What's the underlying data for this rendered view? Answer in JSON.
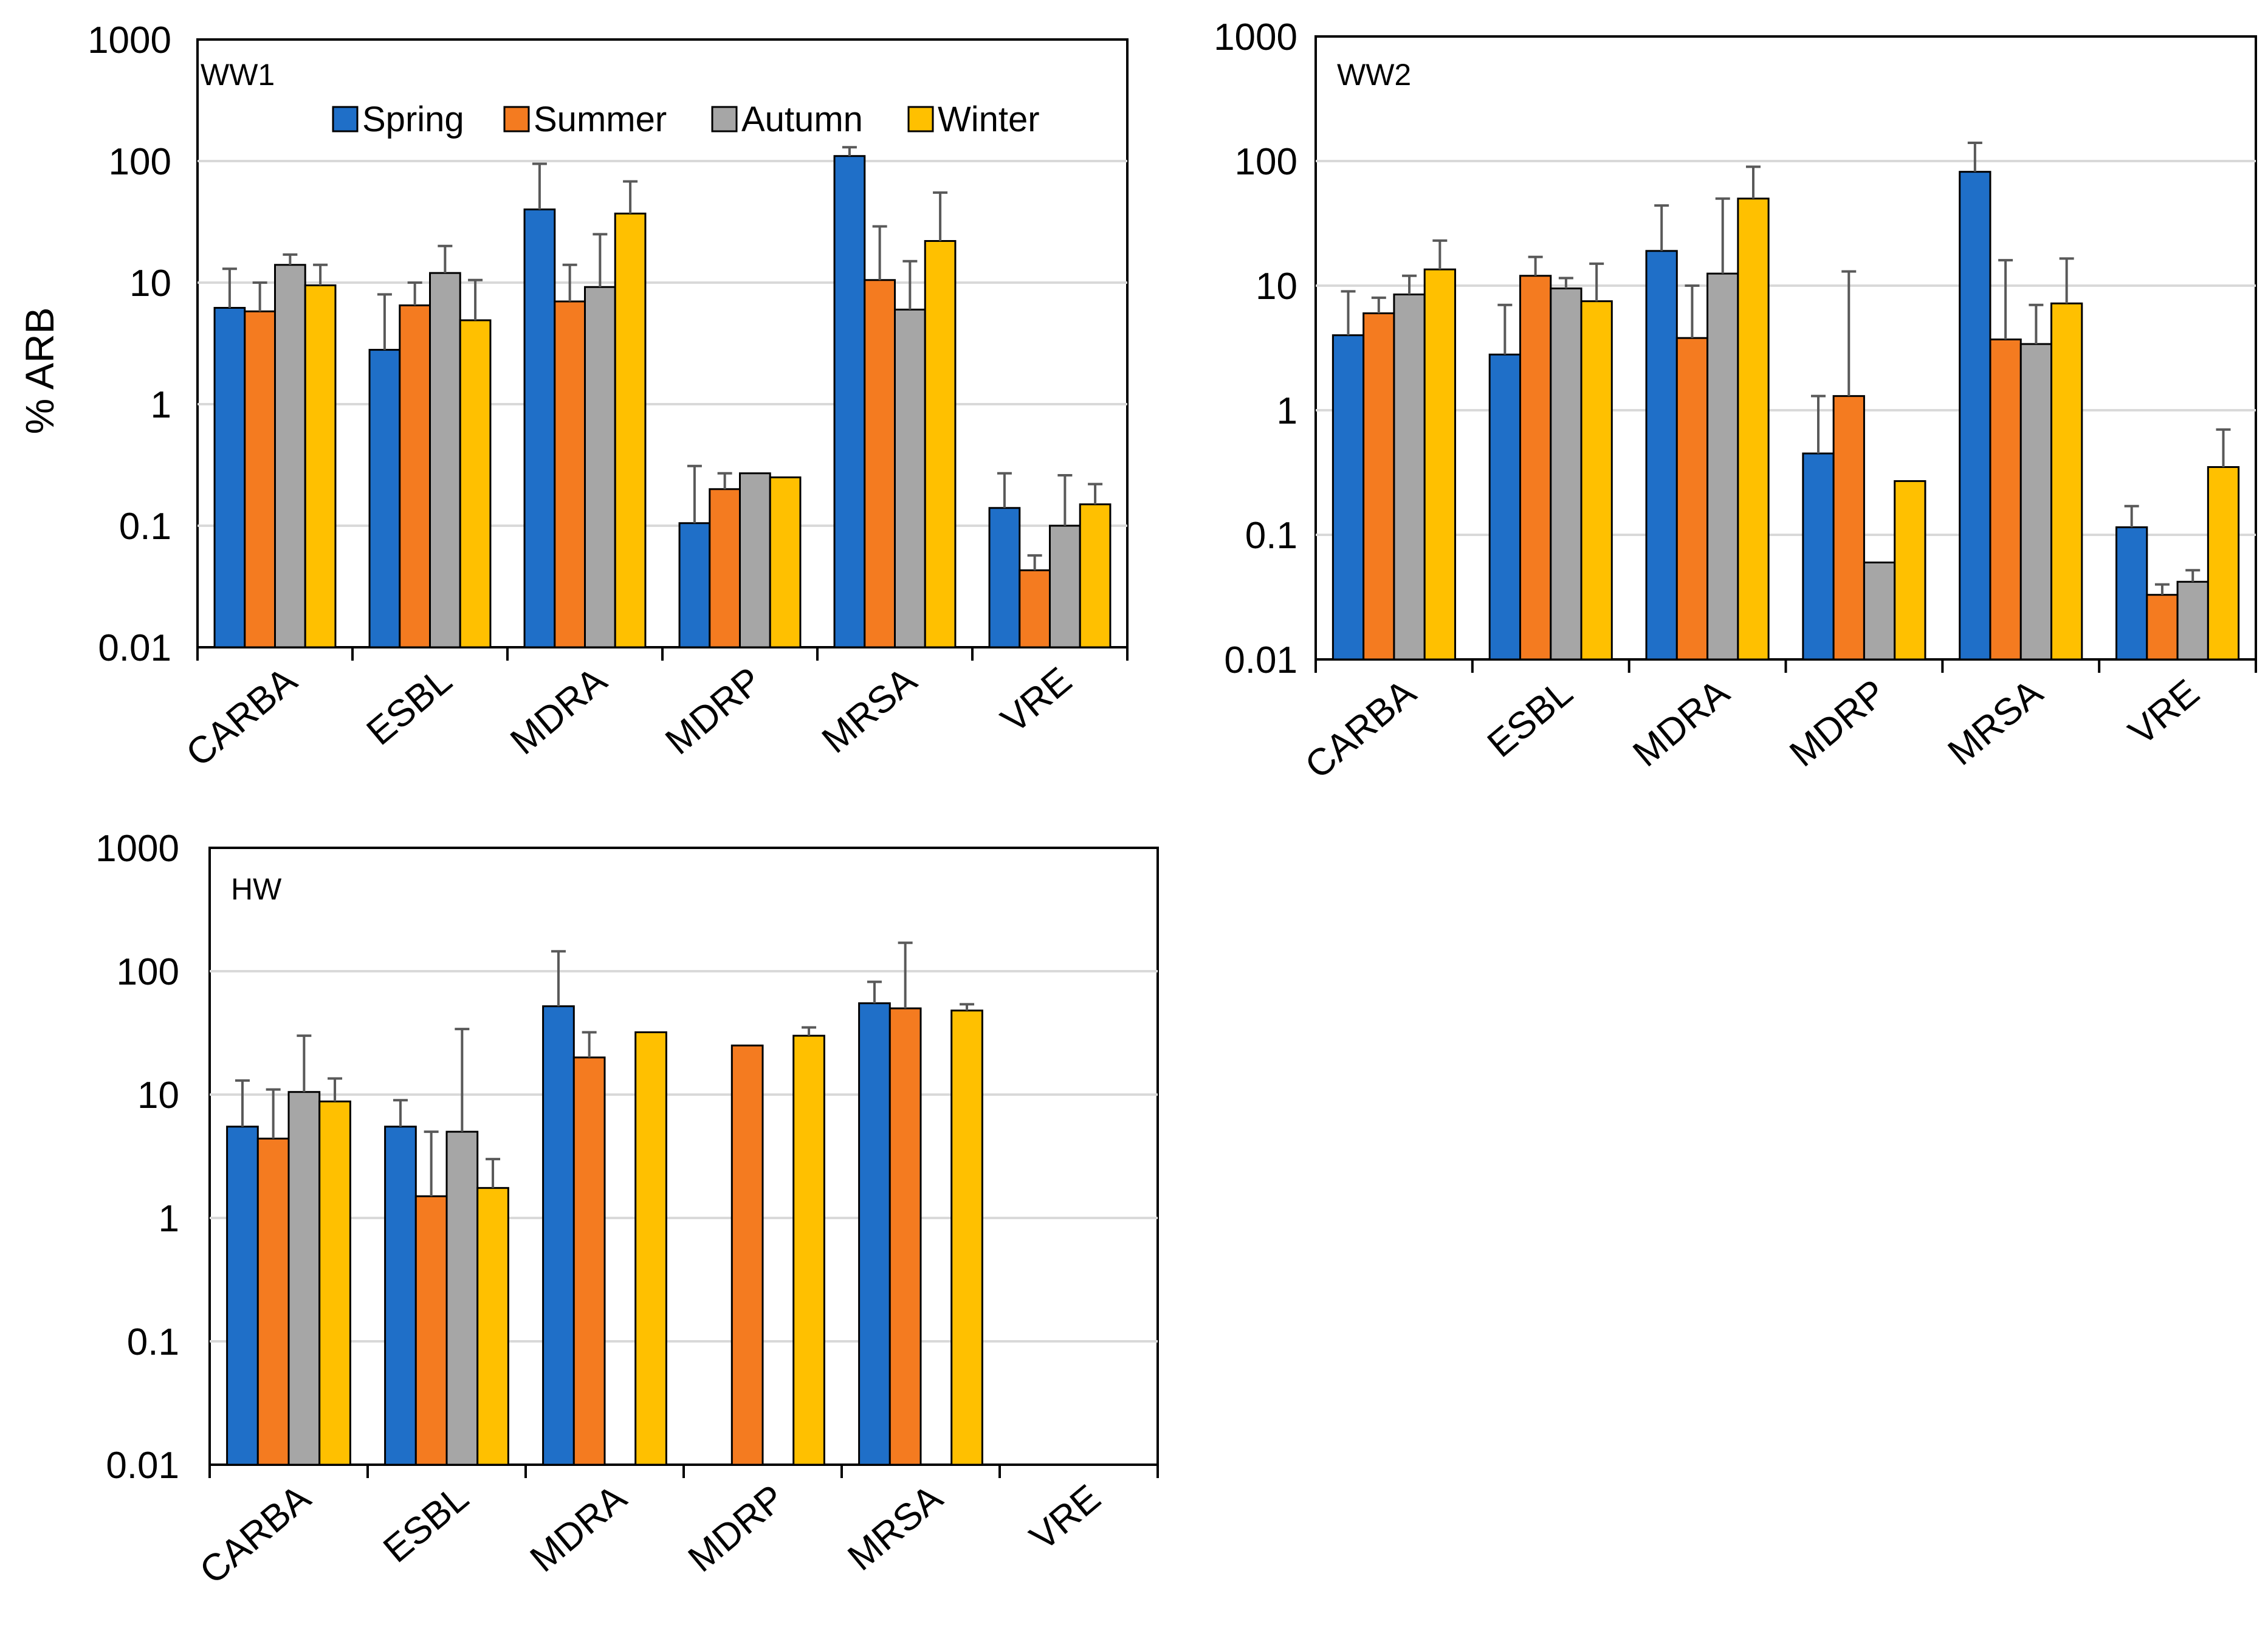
{
  "chart_data": {
    "type": "bar",
    "yscale": "log",
    "ylabel": "% ARB",
    "ylim": [
      0.01,
      1000
    ],
    "yticks": [
      "1000",
      "100",
      "10",
      "1",
      "0.1",
      "0.01"
    ],
    "categories": [
      "CARBA",
      "ESBL",
      "MDRA",
      "MDRP",
      "MRSA",
      "VRE"
    ],
    "legend": {
      "position": "top-inside (WW1 panel)",
      "entries": [
        {
          "name": "Spring",
          "color": "#1f6fc8"
        },
        {
          "name": "Summer",
          "color": "#f47b20"
        },
        {
          "name": "Autumn",
          "color": "#a6a6a6"
        },
        {
          "name": "Winter",
          "color": "#ffc000"
        }
      ]
    },
    "panels": [
      {
        "label": "WW1",
        "series": [
          {
            "name": "Spring",
            "values": [
              6.2,
              2.8,
              40,
              0.105,
              110,
              0.14
            ],
            "error_upper": [
              13,
              8,
              95,
              0.31,
              130,
              0.27
            ]
          },
          {
            "name": "Summer",
            "values": [
              5.8,
              6.5,
              7,
              0.2,
              10.5,
              0.043
            ],
            "error_upper": [
              10,
              10,
              14,
              0.27,
              29,
              0.057
            ]
          },
          {
            "name": "Autumn",
            "values": [
              14,
              12,
              9.2,
              0.27,
              6,
              0.1
            ],
            "error_upper": [
              17,
              20,
              25,
              null,
              15,
              0.26
            ]
          },
          {
            "name": "Winter",
            "values": [
              9.5,
              4.9,
              37,
              0.25,
              22,
              0.15
            ],
            "error_upper": [
              14,
              10.5,
              68,
              null,
              55,
              0.22
            ]
          }
        ]
      },
      {
        "label": "WW2",
        "series": [
          {
            "name": "Spring",
            "values": [
              4,
              2.8,
              19,
              0.45,
              82,
              0.115
            ],
            "error_upper": [
              9,
              7,
              44,
              1.3,
              140,
              0.17
            ]
          },
          {
            "name": "Summer",
            "values": [
              6,
              12,
              3.8,
              1.3,
              3.7,
              0.033
            ],
            "error_upper": [
              8,
              17,
              10,
              13,
              16,
              0.04
            ]
          },
          {
            "name": "Autumn",
            "values": [
              8.5,
              9.5,
              12.5,
              0.06,
              3.4,
              0.042
            ],
            "error_upper": [
              12,
              11.5,
              50,
              null,
              7,
              0.052
            ]
          },
          {
            "name": "Winter",
            "values": [
              13.5,
              7.5,
              50,
              0.27,
              7.2,
              0.35
            ],
            "error_upper": [
              23,
              15,
              90,
              null,
              16.5,
              0.7
            ]
          }
        ]
      },
      {
        "label": "HW",
        "series": [
          {
            "name": "Spring",
            "values": [
              5.5,
              5.5,
              52,
              null,
              55,
              null
            ],
            "error_upper": [
              13,
              9,
              145,
              null,
              82,
              null
            ]
          },
          {
            "name": "Summer",
            "values": [
              4.4,
              1.5,
              20,
              25,
              50,
              null
            ],
            "error_upper": [
              11,
              5,
              32,
              null,
              170,
              null
            ]
          },
          {
            "name": "Autumn",
            "values": [
              10.5,
              5,
              null,
              null,
              null,
              null
            ],
            "error_upper": [
              30,
              34,
              null,
              null,
              null,
              null
            ]
          },
          {
            "name": "Winter",
            "values": [
              8.8,
              1.75,
              32,
              30,
              48,
              null
            ],
            "error_upper": [
              13.5,
              3,
              null,
              35,
              54,
              null
            ]
          }
        ]
      }
    ]
  }
}
